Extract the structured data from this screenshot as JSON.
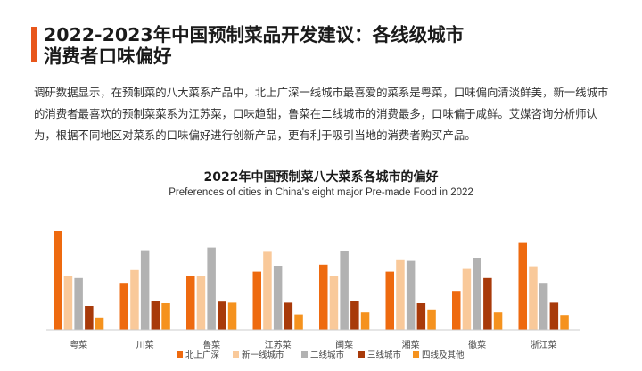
{
  "page": {
    "title_line1": "2022-2023年中国预制菜品开发建议：各线级城市",
    "title_line2": "消费者口味偏好",
    "paragraph": "调研数据显示，在预制菜的八大菜系产品中，北上广深一线城市最喜爱的菜系是粤菜，口味偏向清淡鲜美，新一线城市的消费者最喜欢的预制菜菜系为江苏菜，口味趋甜，鲁菜在二线城市的消费最多，口味偏于咸鲜。艾媒咨询分析师认为，根据不同地区对菜系的口味偏好进行创新产品，更有利于吸引当地的消费者购买产品。",
    "accent_color": "#e8561b"
  },
  "chart_data": {
    "type": "bar",
    "title": "2022年中国预制菜八大菜系各城市的偏好",
    "subtitle": "Preferences of cities in China's eight major Pre-made Food in 2022",
    "categories": [
      "粤菜",
      "川菜",
      "鲁菜",
      "江苏菜",
      "闽菜",
      "湘菜",
      "徽菜",
      "浙江菜"
    ],
    "series": [
      {
        "name": "北上广深",
        "color": "#ee6a0f",
        "values": [
          18.5,
          8.8,
          10.0,
          10.9,
          12.2,
          10.9,
          7.3,
          16.4
        ]
      },
      {
        "name": "新一线城市",
        "color": "#f9c99a",
        "values": [
          10.0,
          11.2,
          10.0,
          14.6,
          10.0,
          13.2,
          11.4,
          11.9
        ]
      },
      {
        "name": "二线城市",
        "color": "#b2b2b2",
        "values": [
          9.7,
          14.9,
          15.4,
          12.0,
          14.8,
          12.9,
          13.5,
          8.8
        ]
      },
      {
        "name": "三线城市",
        "color": "#a83a0a",
        "values": [
          4.5,
          5.4,
          5.3,
          5.1,
          5.5,
          5.0,
          9.7,
          5.1
        ]
      },
      {
        "name": "四线及其他",
        "color": "#f5921e",
        "values": [
          2.2,
          5.0,
          5.1,
          2.9,
          3.3,
          3.7,
          3.3,
          2.8
        ]
      }
    ],
    "ylim": [
      0,
      20
    ],
    "grid": false,
    "legend_position": "bottom"
  }
}
